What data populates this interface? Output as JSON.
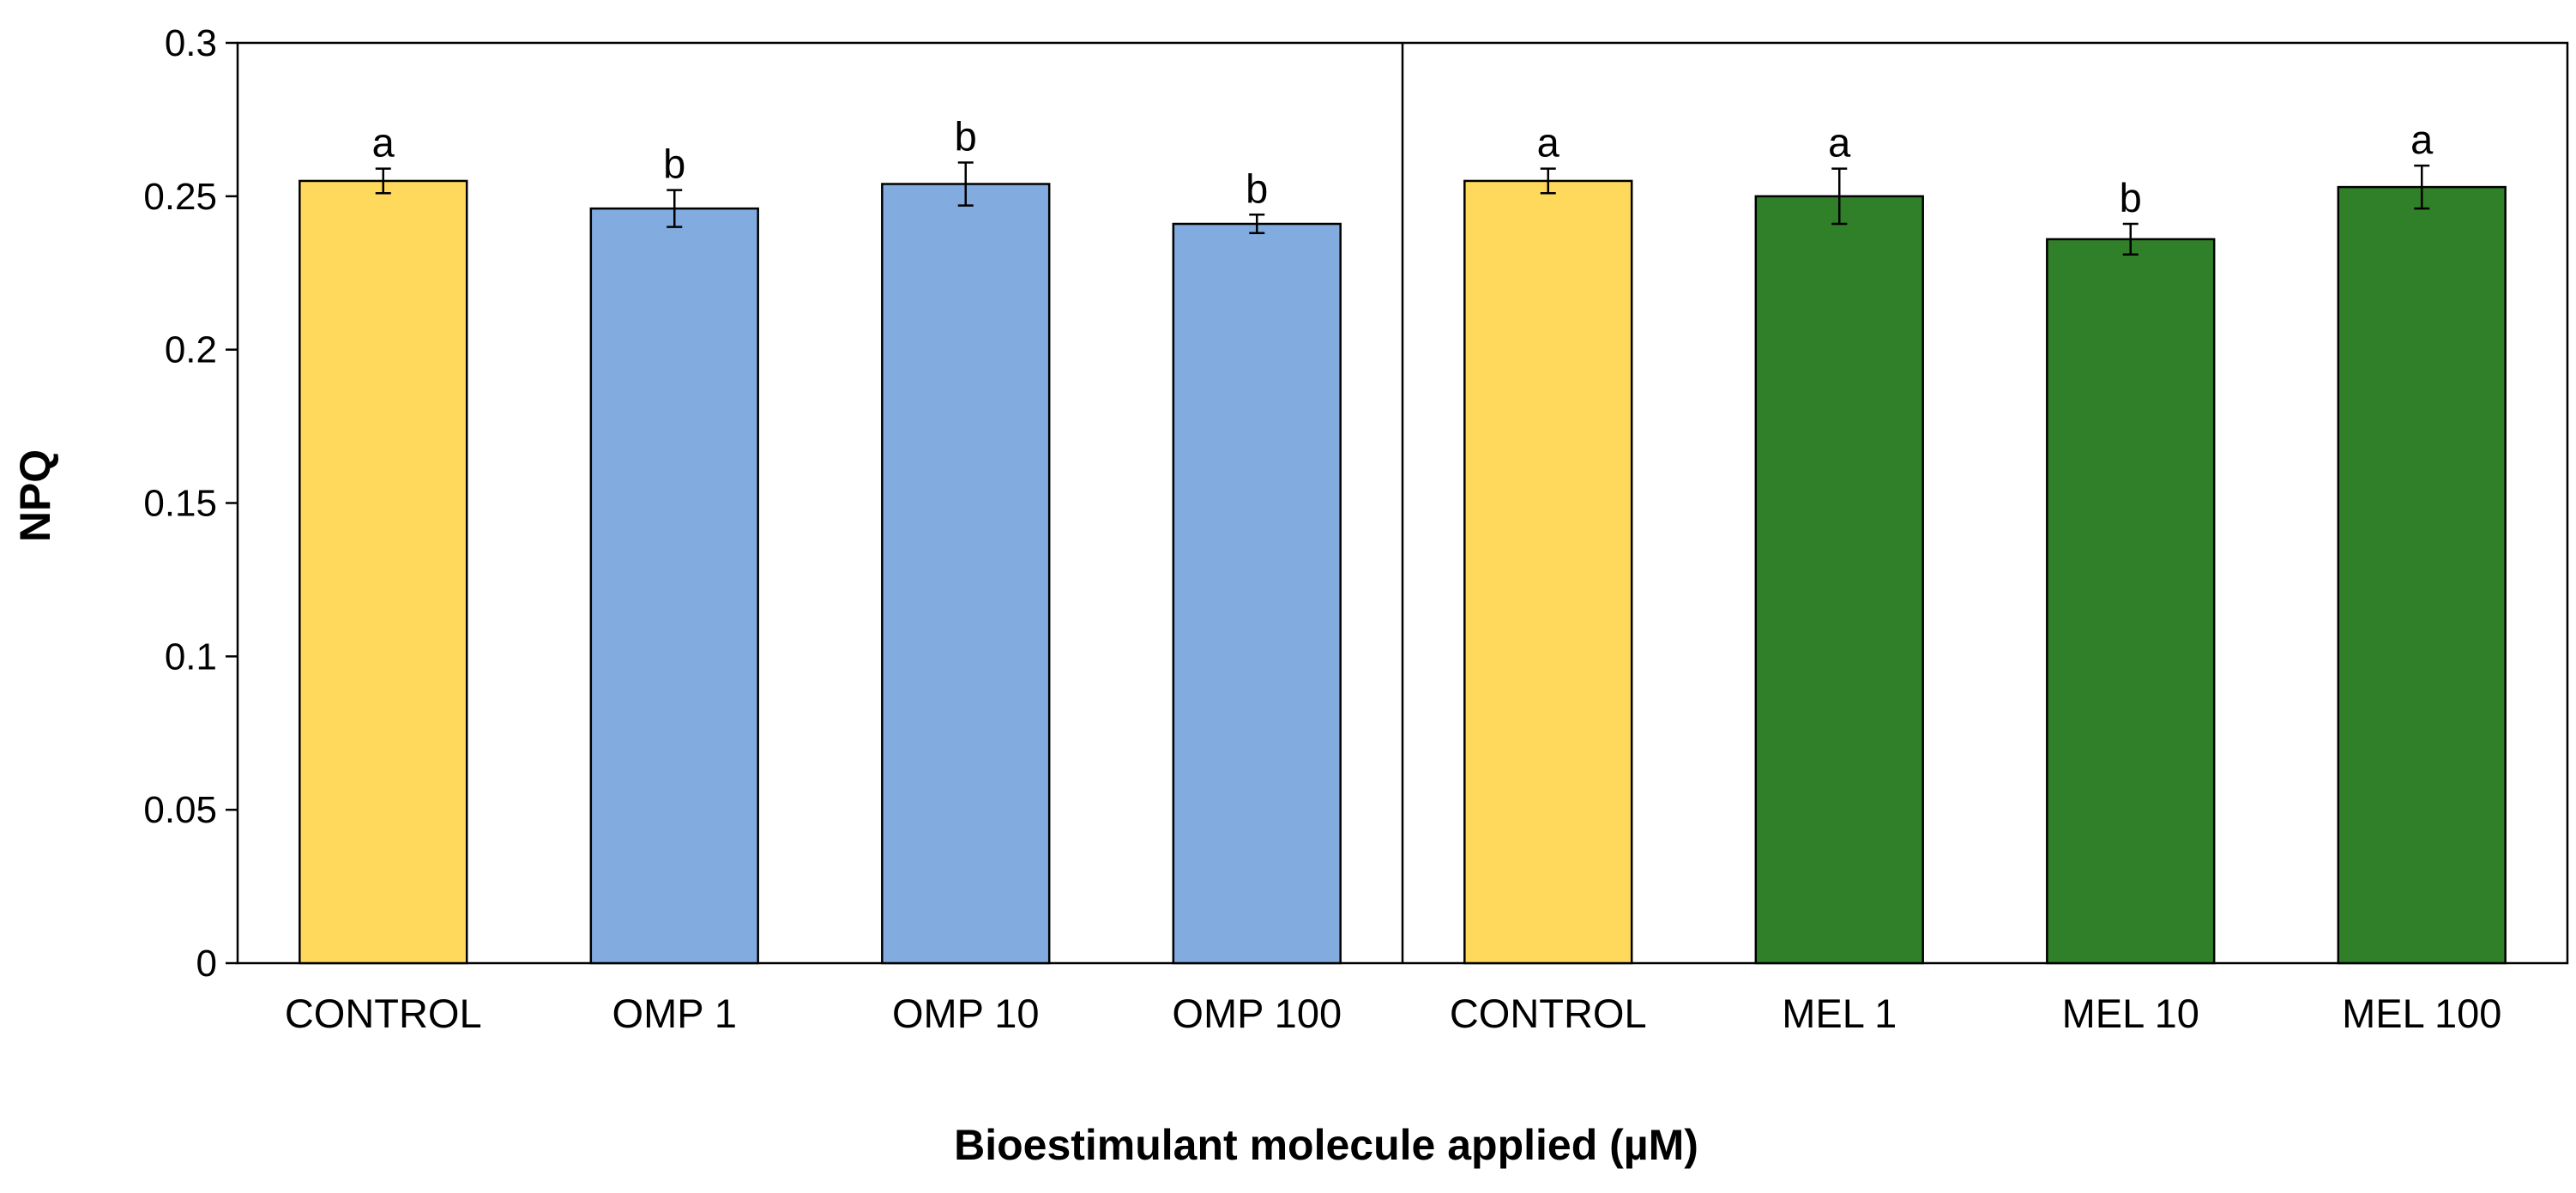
{
  "chart_data": {
    "type": "bar",
    "xlabel": "Bioestimulant molecule applied (µM)",
    "ylabel": "NPQ",
    "ylim": [
      0,
      0.3
    ],
    "yticks": [
      "0",
      "0.05",
      "0.1",
      "0.15",
      "0.2",
      "0.25",
      "0.3"
    ],
    "grid": false,
    "legend": "none",
    "groups": [
      {
        "bars": [
          {
            "category": "CONTROL",
            "value": 0.255,
            "error": 0.004,
            "letter": "a",
            "color": "#FFD95C"
          },
          {
            "category": "OMP 1",
            "value": 0.246,
            "error": 0.006,
            "letter": "b",
            "color": "#82ABE0"
          },
          {
            "category": "OMP 10",
            "value": 0.254,
            "error": 0.007,
            "letter": "b",
            "color": "#82ABE0"
          },
          {
            "category": "OMP 100",
            "value": 0.241,
            "error": 0.003,
            "letter": "b",
            "color": "#82ABE0"
          }
        ]
      },
      {
        "bars": [
          {
            "category": "CONTROL",
            "value": 0.255,
            "error": 0.004,
            "letter": "a",
            "color": "#FFD95C"
          },
          {
            "category": "MEL 1",
            "value": 0.25,
            "error": 0.009,
            "letter": "a",
            "color": "#2F8028"
          },
          {
            "category": "MEL 10",
            "value": 0.236,
            "error": 0.005,
            "letter": "b",
            "color": "#2F8028"
          },
          {
            "category": "MEL 100",
            "value": 0.253,
            "error": 0.007,
            "letter": "a",
            "color": "#2F8028"
          }
        ]
      }
    ]
  }
}
